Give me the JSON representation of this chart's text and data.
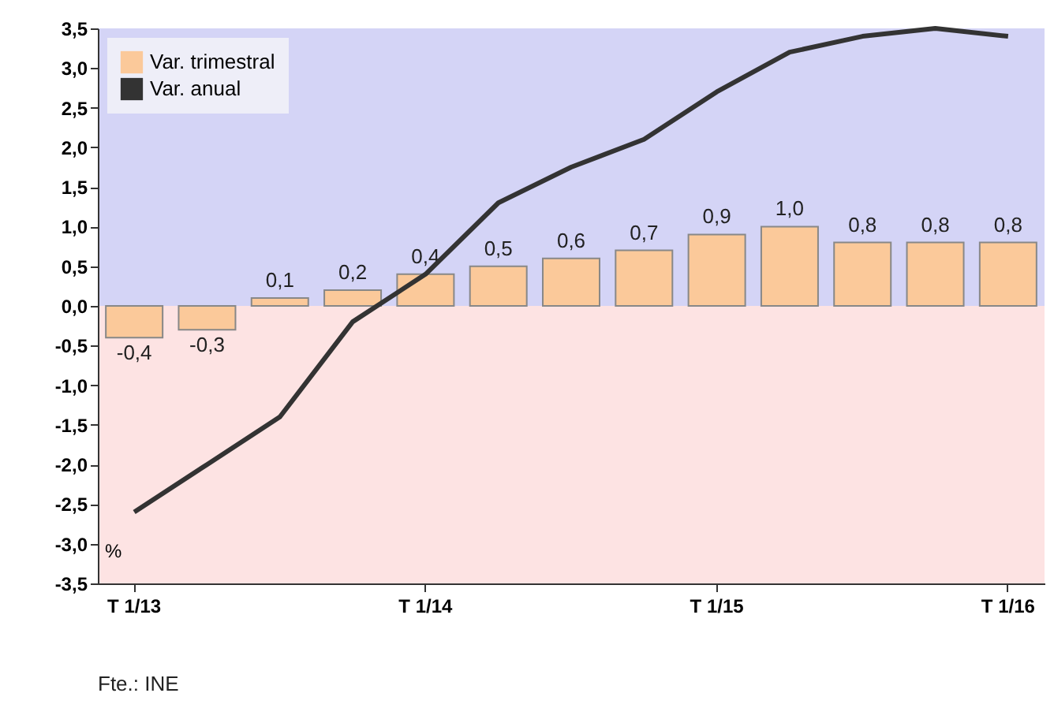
{
  "chart_data": {
    "type": "bar",
    "categories": [
      "T 1/13",
      null,
      null,
      null,
      "T 1/14",
      null,
      null,
      null,
      "T 1/15",
      null,
      null,
      null,
      "T 1/16"
    ],
    "series": [
      {
        "name": "Var. trimestral",
        "color": "#fbc99a",
        "values": [
          -0.4,
          -0.3,
          0.1,
          0.2,
          0.4,
          0.5,
          0.6,
          0.7,
          0.9,
          1.0,
          0.8,
          0.8,
          0.8
        ],
        "value_labels": [
          "-0,4",
          "-0,3",
          "0,1",
          "0,2",
          "0,4",
          "0,5",
          "0,6",
          "0,7",
          "0,9",
          "1,0",
          "0,8",
          "0,8",
          "0,8"
        ]
      },
      {
        "name": "Var. anual",
        "type": "line",
        "color": "#333333",
        "values": [
          -2.6,
          -2.0,
          -1.4,
          -0.2,
          0.4,
          1.3,
          1.75,
          2.1,
          2.7,
          3.2,
          3.4,
          3.5,
          3.4
        ]
      }
    ],
    "ylabel": "%",
    "ylim": [
      -3.5,
      3.5
    ],
    "yticks": [
      {
        "value": -3.5,
        "label": "-3,5"
      },
      {
        "value": -3,
        "label": "-3,0"
      },
      {
        "value": -2.5,
        "label": "-2,5"
      },
      {
        "value": -2,
        "label": "-2,0"
      },
      {
        "value": -1.5,
        "label": "-1,5"
      },
      {
        "value": -1,
        "label": "-1,0"
      },
      {
        "value": -0.5,
        "label": "-0,5"
      },
      {
        "value": 0,
        "label": "0,0"
      },
      {
        "value": 0.5,
        "label": "0,5"
      },
      {
        "value": 1,
        "label": "1,0"
      },
      {
        "value": 1.5,
        "label": "1,5"
      },
      {
        "value": 2,
        "label": "2,0"
      },
      {
        "value": 2.5,
        "label": "2,5"
      },
      {
        "value": 3,
        "label": "3,0"
      },
      {
        "value": 3.5,
        "label": "3,5"
      }
    ],
    "bands": [
      {
        "axis": "y",
        "from": 0,
        "to": 3.5,
        "color": "#d4d4f6"
      },
      {
        "axis": "y",
        "from": -3.5,
        "to": 0,
        "color": "#fde3e3"
      }
    ],
    "legend": "top left",
    "annotations": [
      "Fte.: INE"
    ]
  }
}
